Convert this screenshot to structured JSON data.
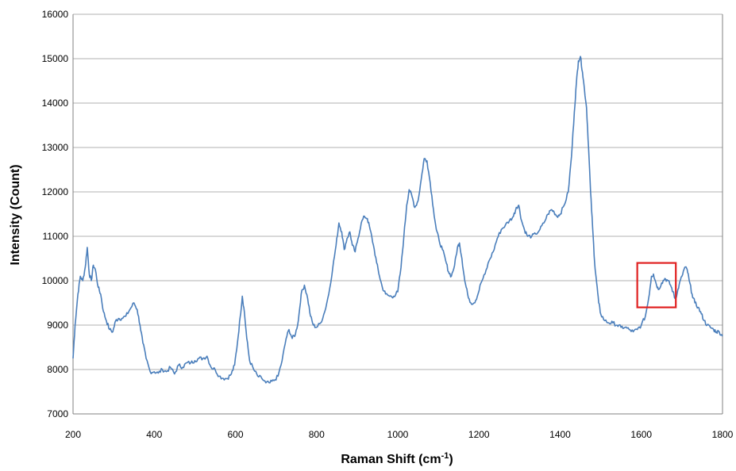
{
  "chart_data": {
    "type": "line",
    "title": "",
    "xlabel": "Raman Shift (cm",
    "xlabel_sup": "-1",
    "xlabel_end": ")",
    "ylabel": "Intensity (Count)",
    "xlim": [
      200,
      1800
    ],
    "ylim": [
      7000,
      16000
    ],
    "x_ticks": [
      "200",
      "400",
      "600",
      "800",
      "1000",
      "1200",
      "1400",
      "1600",
      "1800"
    ],
    "y_ticks": [
      "7000",
      "8000",
      "9000",
      "10000",
      "11000",
      "12000",
      "13000",
      "14000",
      "15000",
      "16000"
    ],
    "grid": "horizontal",
    "legend": "none",
    "colors": {
      "series": "#4a7ebb",
      "highlight_box": "#e02020"
    },
    "series": [
      {
        "color": "#4a7ebb",
        "points": [
          [
            200,
            8250
          ],
          [
            205,
            9000
          ],
          [
            212,
            9700
          ],
          [
            218,
            10100
          ],
          [
            224,
            10000
          ],
          [
            230,
            10300
          ],
          [
            235,
            10750
          ],
          [
            240,
            10150
          ],
          [
            245,
            10000
          ],
          [
            250,
            10350
          ],
          [
            255,
            10250
          ],
          [
            262,
            9850
          ],
          [
            268,
            9700
          ],
          [
            275,
            9300
          ],
          [
            282,
            9100
          ],
          [
            290,
            8900
          ],
          [
            298,
            8850
          ],
          [
            305,
            9100
          ],
          [
            312,
            9150
          ],
          [
            320,
            9150
          ],
          [
            330,
            9200
          ],
          [
            340,
            9350
          ],
          [
            350,
            9500
          ],
          [
            358,
            9350
          ],
          [
            365,
            9000
          ],
          [
            372,
            8600
          ],
          [
            380,
            8250
          ],
          [
            390,
            7950
          ],
          [
            400,
            7950
          ],
          [
            410,
            7920
          ],
          [
            420,
            8000
          ],
          [
            430,
            7950
          ],
          [
            440,
            8050
          ],
          [
            450,
            7900
          ],
          [
            460,
            8100
          ],
          [
            470,
            8050
          ],
          [
            480,
            8150
          ],
          [
            490,
            8150
          ],
          [
            500,
            8200
          ],
          [
            510,
            8250
          ],
          [
            520,
            8250
          ],
          [
            530,
            8300
          ],
          [
            540,
            8050
          ],
          [
            550,
            8000
          ],
          [
            560,
            7850
          ],
          [
            570,
            7800
          ],
          [
            580,
            7800
          ],
          [
            590,
            7900
          ],
          [
            598,
            8100
          ],
          [
            605,
            8600
          ],
          [
            612,
            9200
          ],
          [
            617,
            9650
          ],
          [
            622,
            9300
          ],
          [
            628,
            8700
          ],
          [
            635,
            8200
          ],
          [
            645,
            8000
          ],
          [
            655,
            7850
          ],
          [
            665,
            7800
          ],
          [
            675,
            7700
          ],
          [
            685,
            7700
          ],
          [
            695,
            7750
          ],
          [
            705,
            7850
          ],
          [
            715,
            8200
          ],
          [
            725,
            8700
          ],
          [
            732,
            8900
          ],
          [
            740,
            8700
          ],
          [
            748,
            8800
          ],
          [
            755,
            9100
          ],
          [
            762,
            9700
          ],
          [
            770,
            9900
          ],
          [
            778,
            9600
          ],
          [
            785,
            9200
          ],
          [
            792,
            9000
          ],
          [
            800,
            8950
          ],
          [
            810,
            9050
          ],
          [
            820,
            9300
          ],
          [
            830,
            9700
          ],
          [
            840,
            10300
          ],
          [
            848,
            10800
          ],
          [
            855,
            11300
          ],
          [
            862,
            11100
          ],
          [
            868,
            10700
          ],
          [
            875,
            10950
          ],
          [
            882,
            11100
          ],
          [
            888,
            10800
          ],
          [
            895,
            10650
          ],
          [
            902,
            10950
          ],
          [
            910,
            11300
          ],
          [
            918,
            11450
          ],
          [
            925,
            11400
          ],
          [
            932,
            11150
          ],
          [
            940,
            10800
          ],
          [
            948,
            10400
          ],
          [
            955,
            10100
          ],
          [
            962,
            9850
          ],
          [
            970,
            9700
          ],
          [
            980,
            9650
          ],
          [
            990,
            9650
          ],
          [
            1000,
            9750
          ],
          [
            1008,
            10300
          ],
          [
            1015,
            11000
          ],
          [
            1022,
            11700
          ],
          [
            1028,
            12050
          ],
          [
            1035,
            11900
          ],
          [
            1042,
            11650
          ],
          [
            1050,
            11800
          ],
          [
            1058,
            12300
          ],
          [
            1065,
            12750
          ],
          [
            1072,
            12700
          ],
          [
            1080,
            12200
          ],
          [
            1088,
            11600
          ],
          [
            1095,
            11150
          ],
          [
            1102,
            10900
          ],
          [
            1110,
            10700
          ],
          [
            1118,
            10450
          ],
          [
            1125,
            10200
          ],
          [
            1132,
            10100
          ],
          [
            1140,
            10350
          ],
          [
            1147,
            10750
          ],
          [
            1152,
            10850
          ],
          [
            1158,
            10500
          ],
          [
            1165,
            10000
          ],
          [
            1172,
            9700
          ],
          [
            1180,
            9500
          ],
          [
            1188,
            9500
          ],
          [
            1196,
            9650
          ],
          [
            1205,
            9950
          ],
          [
            1215,
            10150
          ],
          [
            1225,
            10450
          ],
          [
            1235,
            10650
          ],
          [
            1245,
            10950
          ],
          [
            1255,
            11150
          ],
          [
            1265,
            11250
          ],
          [
            1275,
            11350
          ],
          [
            1285,
            11450
          ],
          [
            1292,
            11650
          ],
          [
            1298,
            11700
          ],
          [
            1305,
            11350
          ],
          [
            1312,
            11150
          ],
          [
            1320,
            11000
          ],
          [
            1330,
            11000
          ],
          [
            1340,
            11050
          ],
          [
            1350,
            11150
          ],
          [
            1360,
            11300
          ],
          [
            1370,
            11500
          ],
          [
            1378,
            11600
          ],
          [
            1385,
            11550
          ],
          [
            1392,
            11450
          ],
          [
            1400,
            11500
          ],
          [
            1410,
            11700
          ],
          [
            1420,
            12000
          ],
          [
            1428,
            12800
          ],
          [
            1435,
            13800
          ],
          [
            1440,
            14450
          ],
          [
            1445,
            14950
          ],
          [
            1450,
            15050
          ],
          [
            1455,
            14700
          ],
          [
            1460,
            14300
          ],
          [
            1465,
            13900
          ],
          [
            1470,
            13000
          ],
          [
            1475,
            12000
          ],
          [
            1480,
            11200
          ],
          [
            1485,
            10400
          ],
          [
            1490,
            9950
          ],
          [
            1495,
            9500
          ],
          [
            1500,
            9250
          ],
          [
            1510,
            9100
          ],
          [
            1520,
            9050
          ],
          [
            1530,
            9050
          ],
          [
            1540,
            9000
          ],
          [
            1550,
            8950
          ],
          [
            1560,
            8950
          ],
          [
            1570,
            8900
          ],
          [
            1580,
            8850
          ],
          [
            1590,
            8900
          ],
          [
            1600,
            9000
          ],
          [
            1610,
            9200
          ],
          [
            1618,
            9600
          ],
          [
            1625,
            10100
          ],
          [
            1630,
            10150
          ],
          [
            1636,
            9950
          ],
          [
            1642,
            9800
          ],
          [
            1650,
            9950
          ],
          [
            1658,
            10050
          ],
          [
            1665,
            10000
          ],
          [
            1672,
            9900
          ],
          [
            1678,
            9750
          ],
          [
            1683,
            9600
          ],
          [
            1688,
            9700
          ],
          [
            1693,
            9900
          ],
          [
            1700,
            10100
          ],
          [
            1707,
            10300
          ],
          [
            1713,
            10250
          ],
          [
            1718,
            10000
          ],
          [
            1725,
            9700
          ],
          [
            1732,
            9500
          ],
          [
            1740,
            9400
          ],
          [
            1748,
            9250
          ],
          [
            1755,
            9100
          ],
          [
            1762,
            9000
          ],
          [
            1770,
            8950
          ],
          [
            1778,
            8900
          ],
          [
            1785,
            8850
          ],
          [
            1792,
            8850
          ],
          [
            1800,
            8750
          ]
        ]
      }
    ],
    "annotations": [
      {
        "type": "box",
        "x_range": [
          1590,
          1685
        ],
        "y_range": [
          9400,
          10400
        ],
        "color": "#e02020"
      }
    ]
  }
}
